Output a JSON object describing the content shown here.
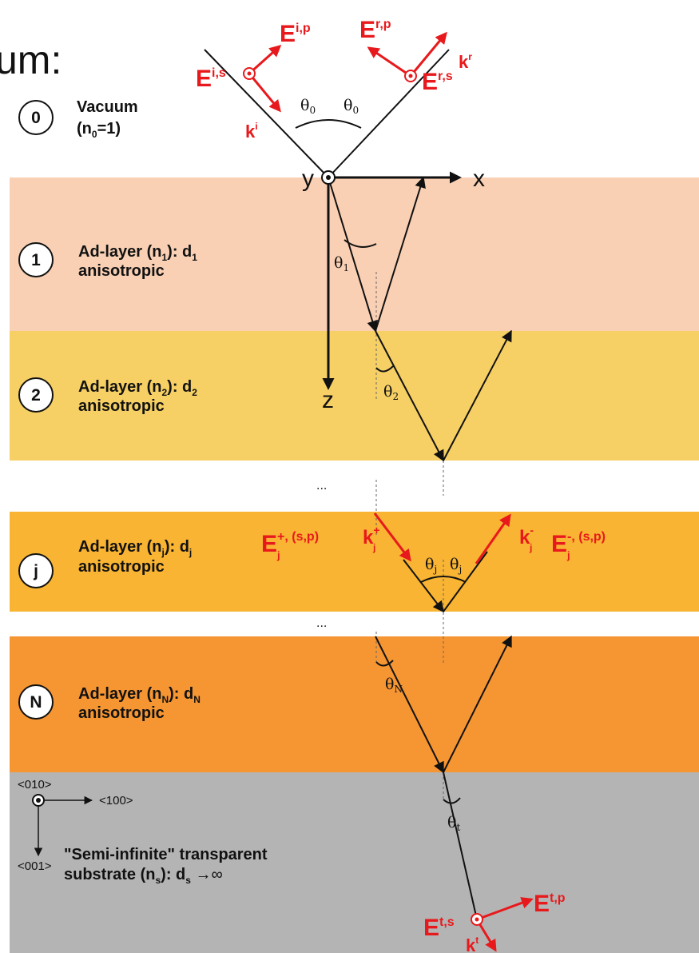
{
  "header_fragment": "um:",
  "colors": {
    "layer1": "#f9d0b4",
    "layer2": "#f6d064",
    "layerj": "#f8b432",
    "layerN": "#f69632",
    "substrate": "#b4b4b4",
    "field_red": "#e8191c"
  },
  "layers": [
    {
      "badge": "0",
      "name": "Vacuum",
      "index": "(n",
      "index_sub": "0",
      "index_tail": "=1)"
    },
    {
      "badge": "1",
      "name": "Ad-layer (n",
      "sub": "1",
      "mid": "): d",
      "dsub": "1",
      "line2": "anisotropic"
    },
    {
      "badge": "2",
      "name": "Ad-layer (n",
      "sub": "2",
      "mid": "): d",
      "dsub": "2",
      "line2": "anisotropic"
    },
    {
      "badge": "j",
      "name": "Ad-layer (n",
      "sub": "j",
      "mid": "): d",
      "dsub": "j",
      "line2": "anisotropic"
    },
    {
      "badge": "N",
      "name": "Ad-layer (n",
      "sub": "N",
      "mid": "): d",
      "dsub": "N",
      "line2": "anisotropic"
    }
  ],
  "substrate": {
    "line1": "\"Semi-infinite\" transparent",
    "line2a": "substrate (n",
    "line2sub": "s",
    "line2b": "): d",
    "line2dsub": "s",
    "line2tail": " →∞"
  },
  "crystal_axes": {
    "y": "<010>",
    "x": "<100>",
    "z": "<001>"
  },
  "axes": {
    "x": "x",
    "y": "y",
    "z": "z"
  },
  "ellipsis": "...",
  "angles": {
    "theta": "θ",
    "sub0": "0",
    "sub1": "1",
    "sub2": "2",
    "subj": "j",
    "subN": "N",
    "subt": "t"
  },
  "fields": {
    "E": "E",
    "k": "k",
    "i_p": "i,p",
    "i_s": "i,s",
    "r_p": "r,p",
    "r_s": "r,s",
    "k_i": "i",
    "k_r": "r",
    "j_plus_sup": "+, (s,p)",
    "j_minus_sup": "-, (s,p)",
    "j_sub": "j",
    "kj_plus": "+",
    "kj_minus": "-",
    "t_s": "t,s",
    "t_p": "t,p",
    "k_t": "t"
  }
}
